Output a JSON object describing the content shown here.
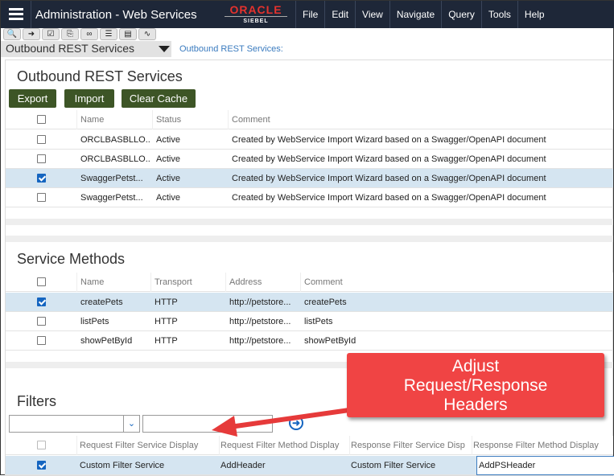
{
  "header": {
    "title": "Administration - Web Services",
    "logo_top": "ORACLE",
    "logo_bottom": "SIEBEL",
    "menu": [
      "File",
      "Edit",
      "View",
      "Navigate",
      "Query",
      "Tools",
      "Help"
    ]
  },
  "toolbar": {
    "icons": [
      "search-icon",
      "go-icon",
      "checklist-icon",
      "clipboard-icon",
      "link-icon",
      "list-icon",
      "notes-icon",
      "chart-icon"
    ]
  },
  "view": {
    "selector": "Outbound REST Services",
    "breadcrumb": "Outbound REST Services:"
  },
  "outbound": {
    "title": "Outbound REST Services",
    "buttons": [
      "Export",
      "Import",
      "Clear Cache"
    ],
    "columns": [
      "Name",
      "Status",
      "Comment"
    ],
    "rows": [
      {
        "checked": false,
        "name": "ORCLBASBLLO...",
        "status": "Active",
        "comment": "Created by WebService Import Wizard based on a Swagger/OpenAPI document"
      },
      {
        "checked": false,
        "name": "ORCLBASBLLO...",
        "status": "Active",
        "comment": "Created by WebService Import Wizard based on a Swagger/OpenAPI document"
      },
      {
        "checked": true,
        "name": "SwaggerPetst...",
        "status": "Active",
        "comment": "Created by WebService Import Wizard based on a Swagger/OpenAPI document"
      },
      {
        "checked": false,
        "name": "SwaggerPetst...",
        "status": "Active",
        "comment": "Created by WebService Import Wizard based on a Swagger/OpenAPI document"
      }
    ]
  },
  "methods": {
    "title": "Service Methods",
    "columns": [
      "Name",
      "Transport",
      "Address",
      "Comment"
    ],
    "rows": [
      {
        "checked": true,
        "name": "createPets",
        "transport": "HTTP",
        "address": "http://petstore...",
        "comment": "createPets"
      },
      {
        "checked": false,
        "name": "listPets",
        "transport": "HTTP",
        "address": "http://petstore...",
        "comment": "listPets"
      },
      {
        "checked": false,
        "name": "showPetById",
        "transport": "HTTP",
        "address": "http://petstore...",
        "comment": "showPetById"
      }
    ]
  },
  "filters": {
    "title": "Filters",
    "field_value": "",
    "query_value": "",
    "columns": [
      "Request Filter Service Display",
      "Request Filter Method Display",
      "Response Filter Service Disp",
      "Response Filter Method Display"
    ],
    "rows": [
      {
        "checked": true,
        "req_service": "Custom Filter Service",
        "req_method": "AddHeader",
        "resp_service": "Custom Filter Service",
        "resp_method": "AddPSHeader"
      }
    ]
  },
  "callout": {
    "text": [
      "Adjust",
      "Request/Response",
      "Headers"
    ],
    "color": "#f04444"
  }
}
